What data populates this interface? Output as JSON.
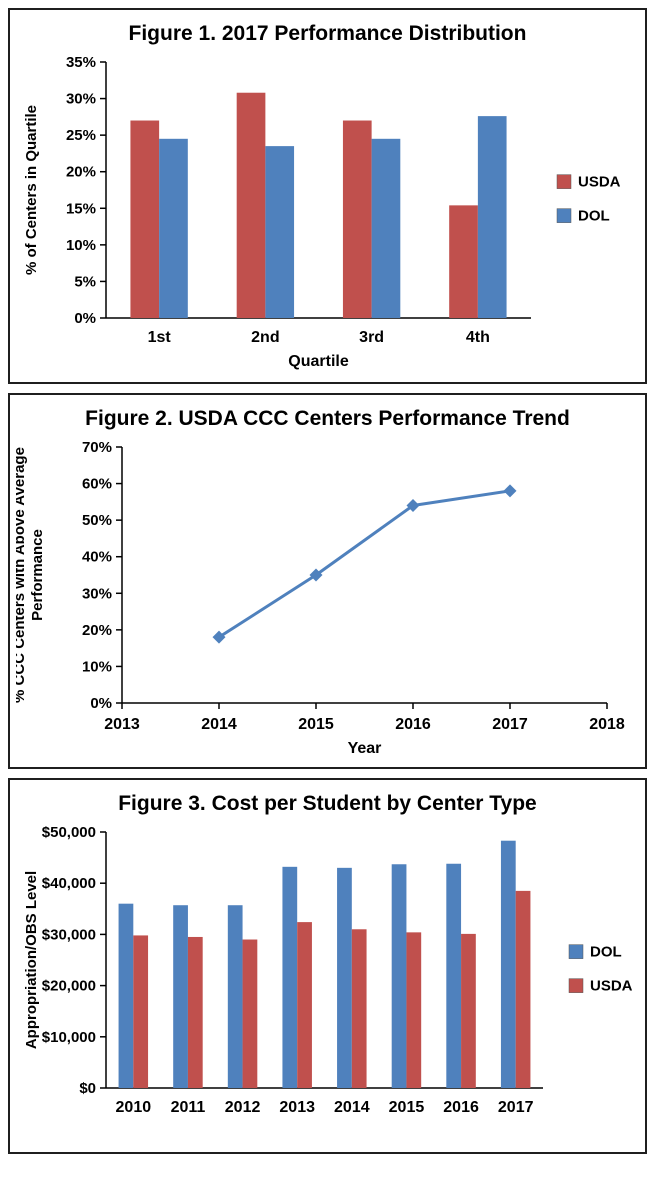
{
  "page": {
    "background": "#ffffff",
    "border_color": "#1f1f1f"
  },
  "colors": {
    "usda_red": "#c0504d",
    "dol_blue": "#4f81bd",
    "axis": "#000000"
  },
  "chart_data": [
    {
      "type": "bar",
      "title": "Figure 1. 2017 Performance Distribution",
      "categories": [
        "1st",
        "2nd",
        "3rd",
        "4th"
      ],
      "series": [
        {
          "name": "USDA",
          "color": "#c0504d",
          "values": [
            27.0,
            30.8,
            27.0,
            15.4
          ]
        },
        {
          "name": "DOL",
          "color": "#4f81bd",
          "values": [
            24.5,
            23.5,
            24.5,
            27.6
          ]
        }
      ],
      "xlabel": "Quartile",
      "ylabel": "% of Centers in Quartile",
      "ylim": [
        0,
        35
      ],
      "ytick_step": 5,
      "ytick_format": "percent",
      "legend_position": "right",
      "grid": false
    },
    {
      "type": "line",
      "title": "Figure 2. USDA CCC Centers Performance Trend",
      "x": [
        2014,
        2015,
        2016,
        2017
      ],
      "values": [
        18,
        35,
        54,
        58
      ],
      "xlabel": "Year",
      "ylabel": "% CCC Centers with Above Average\nPerformance",
      "xlim": [
        2013,
        2018
      ],
      "xticks": [
        2013,
        2014,
        2015,
        2016,
        2017,
        2018
      ],
      "ylim": [
        0,
        70
      ],
      "ytick_step": 10,
      "ytick_format": "percent",
      "line_color": "#4f81bd",
      "marker": "diamond",
      "grid": false
    },
    {
      "type": "bar",
      "title": "Figure 3. Cost per Student by Center Type",
      "categories": [
        "2010",
        "2011",
        "2012",
        "2013",
        "2014",
        "2015",
        "2016",
        "2017"
      ],
      "series": [
        {
          "name": "DOL",
          "color": "#4f81bd",
          "values": [
            36000,
            35700,
            35700,
            43200,
            43000,
            43700,
            43800,
            48300
          ]
        },
        {
          "name": "USDA",
          "color": "#c0504d",
          "values": [
            29800,
            29500,
            29000,
            32400,
            31000,
            30400,
            30100,
            38500
          ]
        }
      ],
      "xlabel": "",
      "ylabel": "Appropriation/OBS Level",
      "ylim": [
        0,
        50000
      ],
      "ytick_step": 10000,
      "ytick_format": "dollar",
      "legend_position": "right",
      "grid": false
    }
  ]
}
